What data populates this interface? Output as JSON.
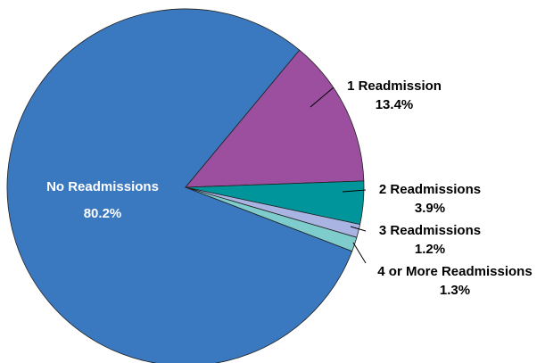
{
  "chart_data": {
    "type": "pie",
    "categories": [
      "No Readmissions",
      "1 Readmission",
      "2 Readmissions",
      "3 Readmissions",
      "4 or More Readmissions"
    ],
    "values": [
      80.2,
      13.4,
      3.9,
      1.2,
      1.3
    ],
    "value_labels": [
      "80.2%",
      "13.4%",
      "3.9%",
      "1.2%",
      "1.3%"
    ],
    "colors": [
      "#3a78c0",
      "#9b4f9e",
      "#00959a",
      "#a9b4e2",
      "#7fcccc"
    ]
  }
}
